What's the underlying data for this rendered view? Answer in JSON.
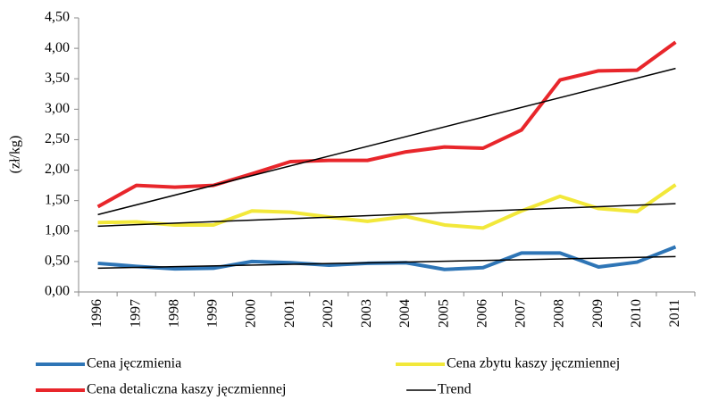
{
  "chart_data": {
    "type": "line",
    "y_label": "(zł/kg)",
    "categories": [
      "1996",
      "1997",
      "1998",
      "1999",
      "2000",
      "2001",
      "2002",
      "2003",
      "2004",
      "2005",
      "2006",
      "2007",
      "2008",
      "2009",
      "2010",
      "2011"
    ],
    "series": [
      {
        "name": "Cena jęczmienia",
        "color": "#2e75b6",
        "values": [
          0.47,
          0.42,
          0.38,
          0.39,
          0.5,
          0.48,
          0.44,
          0.47,
          0.48,
          0.37,
          0.4,
          0.64,
          0.64,
          0.41,
          0.49,
          0.74
        ]
      },
      {
        "name": "Cena zbytu kaszy jęczmiennej",
        "color": "#f2e83a",
        "values": [
          1.14,
          1.15,
          1.1,
          1.1,
          1.33,
          1.31,
          1.23,
          1.16,
          1.24,
          1.1,
          1.05,
          1.33,
          1.57,
          1.37,
          1.32,
          1.76
        ]
      },
      {
        "name": "Cena detaliczna kaszy jęczmiennej",
        "color": "#e8262b",
        "values": [
          1.4,
          1.75,
          1.72,
          1.75,
          1.94,
          2.14,
          2.16,
          2.16,
          2.3,
          2.38,
          2.36,
          2.66,
          3.48,
          3.63,
          3.64,
          4.1
        ]
      }
    ],
    "trend": {
      "name": "Trend",
      "color": "#000000",
      "lines": [
        {
          "values": [
            0.39,
            0.58
          ]
        },
        {
          "values": [
            1.08,
            1.45
          ]
        },
        {
          "values": [
            1.27,
            3.67
          ]
        }
      ]
    },
    "ylim": [
      0,
      4.5
    ],
    "yticks": [
      {
        "value": 0,
        "label": "0,00"
      },
      {
        "value": 0.5,
        "label": "0,50"
      },
      {
        "value": 1,
        "label": "1,00"
      },
      {
        "value": 1.5,
        "label": "1,50"
      },
      {
        "value": 2,
        "label": "2,00"
      },
      {
        "value": 2.5,
        "label": "2,50"
      },
      {
        "value": 3,
        "label": "3,00"
      },
      {
        "value": 3.5,
        "label": "3,50"
      },
      {
        "value": 4,
        "label": "4,00"
      },
      {
        "value": 4.5,
        "label": "4,50"
      }
    ],
    "grid": false,
    "legend": "bottom"
  }
}
